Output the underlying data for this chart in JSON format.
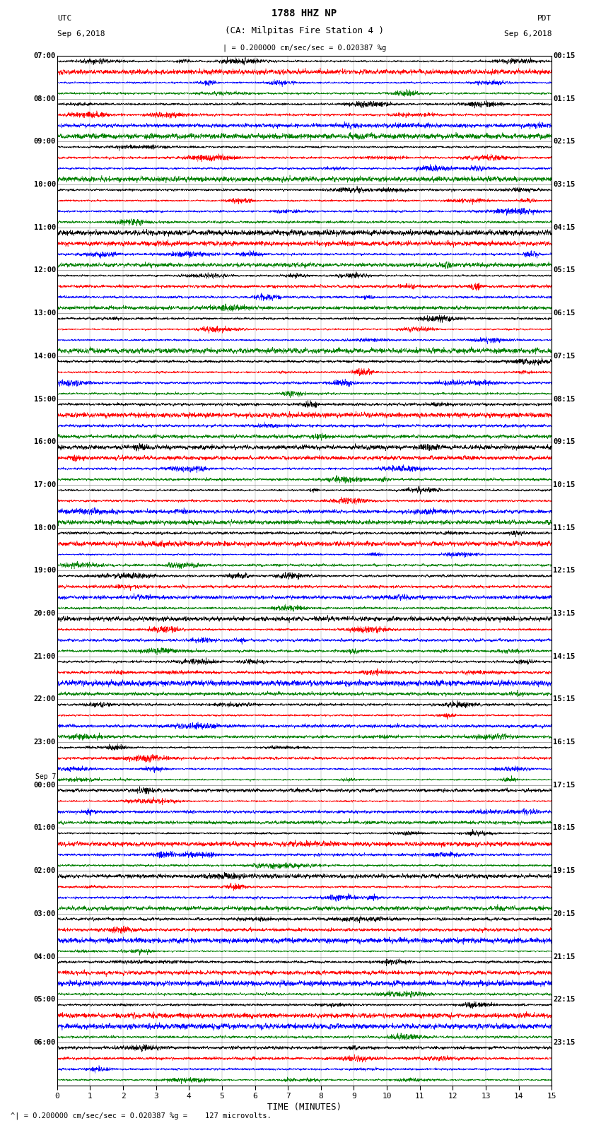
{
  "title_line1": "1788 HHZ NP",
  "title_line2": "(CA: Milpitas Fire Station 4 )",
  "utc_label": "UTC",
  "utc_date": "Sep 6,2018",
  "pdt_label": "PDT",
  "pdt_date": "Sep 6,2018",
  "xlabel": "TIME (MINUTES)",
  "scale_text": "= 0.200000 cm/sec/sec = 0.020387 %g =    127 microvolts.",
  "scale_bar_text": "| = 0.200000 cm/sec/sec = 0.020387 %g",
  "x_ticks": [
    0,
    1,
    2,
    3,
    4,
    5,
    6,
    7,
    8,
    9,
    10,
    11,
    12,
    13,
    14,
    15
  ],
  "x_min": 0,
  "x_max": 15,
  "colors": [
    "black",
    "red",
    "blue",
    "green"
  ],
  "num_traces_per_hour": 4,
  "background_color": "white",
  "total_rows": 96,
  "fig_width": 8.5,
  "fig_height": 16.13,
  "left_time_labels": [
    "07:00",
    "08:00",
    "09:00",
    "10:00",
    "11:00",
    "12:00",
    "13:00",
    "14:00",
    "15:00",
    "16:00",
    "17:00",
    "18:00",
    "19:00",
    "20:00",
    "21:00",
    "22:00",
    "23:00",
    "Sep 7\n00:00",
    "01:00",
    "02:00",
    "03:00",
    "04:00",
    "05:00",
    "06:00"
  ],
  "right_time_labels": [
    "00:15",
    "01:15",
    "02:15",
    "03:15",
    "04:15",
    "05:15",
    "06:15",
    "07:15",
    "08:15",
    "09:15",
    "10:15",
    "11:15",
    "12:15",
    "13:15",
    "14:15",
    "15:15",
    "16:15",
    "17:15",
    "18:15",
    "19:15",
    "20:15",
    "21:15",
    "22:15",
    "23:15"
  ],
  "num_hours": 24
}
